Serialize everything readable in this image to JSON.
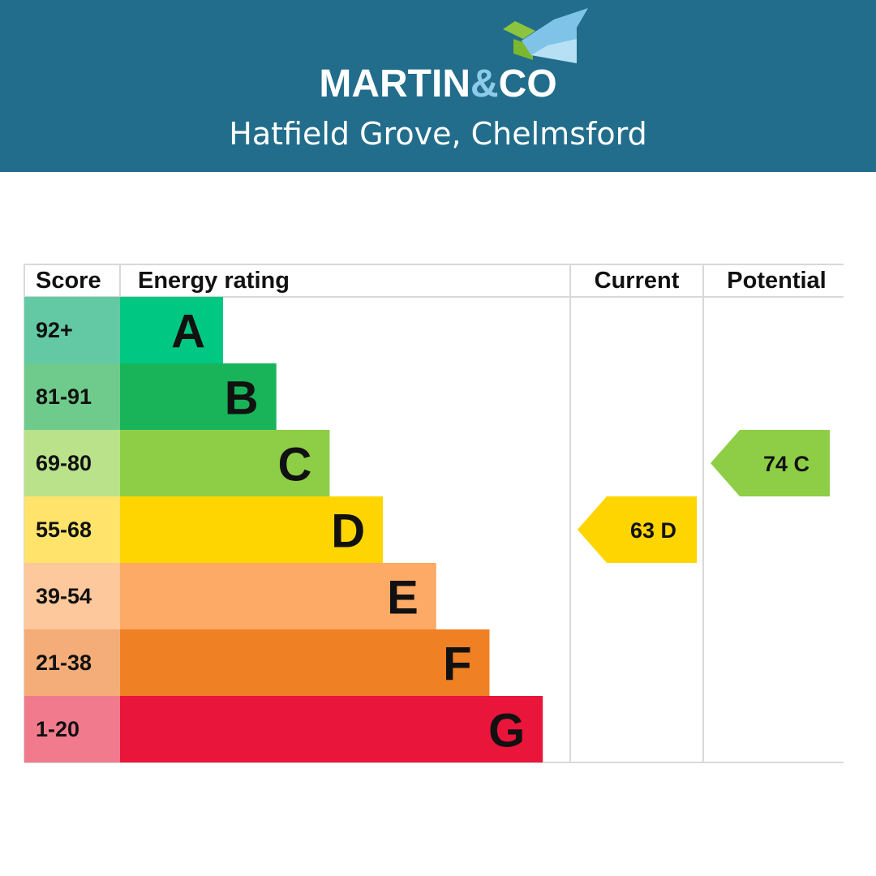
{
  "header": {
    "brand_main": "MARTIN",
    "brand_amp": "&",
    "brand_end": "CO",
    "location": "Hatfield Grove, Chelmsford",
    "background_color": "#216d8b"
  },
  "chart_data": {
    "type": "bar",
    "columns": {
      "score": "Score",
      "rating": "Energy rating",
      "current": "Current",
      "potential": "Potential"
    },
    "bands": [
      {
        "score": "92+",
        "letter": "A",
        "min": 92,
        "max": 100,
        "bar_color": "#00c781",
        "score_color": "#63c9a5"
      },
      {
        "score": "81-91",
        "letter": "B",
        "min": 81,
        "max": 91,
        "bar_color": "#19b459",
        "score_color": "#6fcb8c"
      },
      {
        "score": "69-80",
        "letter": "C",
        "min": 69,
        "max": 80,
        "bar_color": "#8dce46",
        "score_color": "#b9e28a"
      },
      {
        "score": "55-68",
        "letter": "D",
        "min": 55,
        "max": 68,
        "bar_color": "#ffd500",
        "score_color": "#ffe36b"
      },
      {
        "score": "39-54",
        "letter": "E",
        "min": 39,
        "max": 54,
        "bar_color": "#fcaa65",
        "score_color": "#fdc89b"
      },
      {
        "score": "21-38",
        "letter": "F",
        "min": 21,
        "max": 38,
        "bar_color": "#ef8023",
        "score_color": "#f4ad78"
      },
      {
        "score": "1-20",
        "letter": "G",
        "min": 1,
        "max": 20,
        "bar_color": "#e9153b",
        "score_color": "#f17a8d"
      }
    ],
    "current": {
      "value": 63,
      "letter": "D",
      "label": "63  D",
      "color": "#ffd500"
    },
    "potential": {
      "value": 74,
      "letter": "C",
      "label": "74  C",
      "color": "#8dce46"
    }
  }
}
